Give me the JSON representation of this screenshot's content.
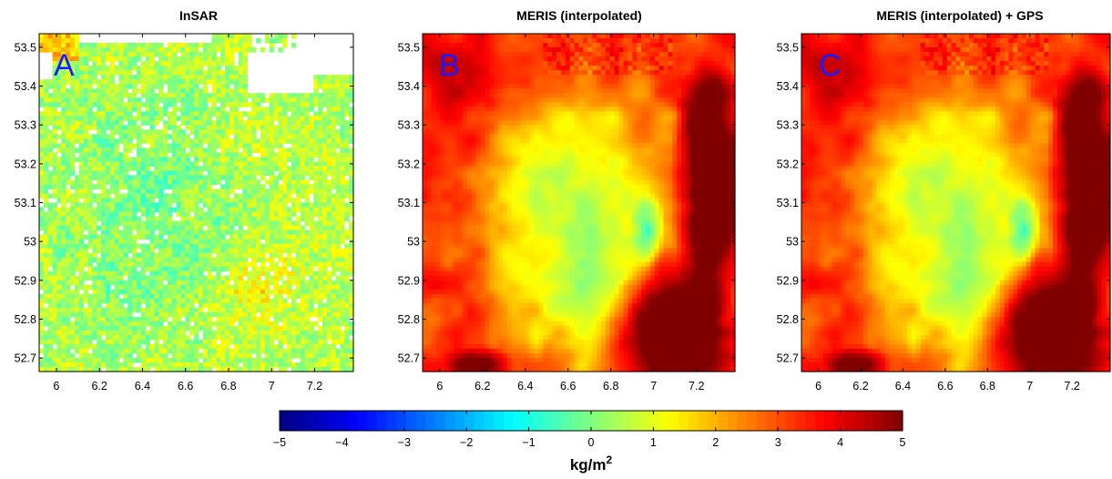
{
  "chart_data": [
    {
      "type": "heatmap",
      "panel_label": "A",
      "title": "InSAR",
      "field": "insar",
      "x_ticks": [
        "6",
        "6.2",
        "6.4",
        "6.6",
        "6.8",
        "7",
        "7.2"
      ],
      "y_ticks": [
        "53.5",
        "53.4",
        "53.3",
        "53.2",
        "53.1",
        "53",
        "52.9",
        "52.8",
        "52.7"
      ],
      "xlim": [
        5.92,
        7.38
      ],
      "ylim": [
        52.665,
        53.535
      ],
      "missing_data_shown_as": "white",
      "approx_value_range": [
        -1.5,
        2.0
      ]
    },
    {
      "type": "heatmap",
      "panel_label": "B",
      "title": "MERIS (interpolated)",
      "field": "meris",
      "x_ticks": [
        "6",
        "6.2",
        "6.4",
        "6.6",
        "6.8",
        "7",
        "7.2"
      ],
      "y_ticks": [
        "53.5",
        "53.4",
        "53.3",
        "53.2",
        "53.1",
        "53",
        "52.9",
        "52.8",
        "52.7"
      ],
      "xlim": [
        5.92,
        7.38
      ],
      "ylim": [
        52.665,
        53.535
      ],
      "approx_value_range": [
        -1.5,
        5.0
      ]
    },
    {
      "type": "heatmap",
      "panel_label": "C",
      "title": "MERIS (interpolated) + GPS",
      "field": "meris",
      "x_ticks": [
        "6",
        "6.2",
        "6.4",
        "6.6",
        "6.8",
        "7",
        "7.2"
      ],
      "y_ticks": [
        "53.5",
        "53.4",
        "53.3",
        "53.2",
        "53.1",
        "53",
        "52.9",
        "52.8",
        "52.7"
      ],
      "xlim": [
        5.92,
        7.38
      ],
      "ylim": [
        52.665,
        53.535
      ],
      "approx_value_range": [
        -1.5,
        5.0
      ]
    }
  ],
  "colorbar": {
    "colormap": "jet",
    "min": -5,
    "max": 5,
    "ticks": [
      "−5",
      "−4",
      "−3",
      "−2",
      "−1",
      "0",
      "1",
      "2",
      "3",
      "4",
      "5"
    ],
    "unit_base": "kg/m",
    "unit_exponent": "2"
  }
}
